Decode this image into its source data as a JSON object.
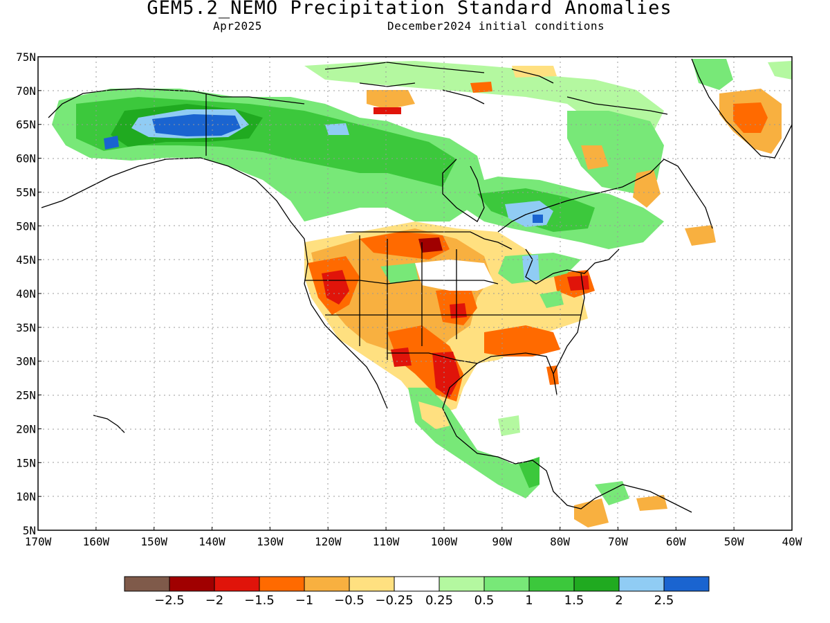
{
  "header": {
    "title": "GEM5.2_NEMO Precipitation Standard Anomalies",
    "valid_month": "Apr2025",
    "init_label": "December2024 initial conditions"
  },
  "map": {
    "lon_range": [
      -170,
      -40
    ],
    "lat_range": [
      5,
      75
    ],
    "x_ticks": [
      "170W",
      "160W",
      "150W",
      "140W",
      "130W",
      "120W",
      "110W",
      "100W",
      "90W",
      "80W",
      "70W",
      "60W",
      "50W",
      "40W"
    ],
    "y_ticks": [
      "5N",
      "10N",
      "15N",
      "20N",
      "25N",
      "30N",
      "35N",
      "40N",
      "45N",
      "50N",
      "55N",
      "60N",
      "65N",
      "70N",
      "75N"
    ],
    "grid": "dotted",
    "colorbar": {
      "colors": [
        "#7f5a4a",
        "#a00000",
        "#e0140a",
        "#ff6a00",
        "#f8b040",
        "#ffe080",
        "#ffffff",
        "#b4f8a0",
        "#78e878",
        "#3cc83c",
        "#20aa20",
        "#90ccf4",
        "#1a64d0"
      ],
      "labels": [
        "−2.5",
        "−2",
        "−1.5",
        "−1",
        "−0.5",
        "−0.25",
        "0.25",
        "0.5",
        "1",
        "1.5",
        "2",
        "2.5"
      ]
    },
    "regions": [
      {
        "desc": "alaska-green",
        "value": 1.5
      },
      {
        "desc": "yukon-blue",
        "value": 2.5
      },
      {
        "desc": "great-plains-dry",
        "value": -1.5
      },
      {
        "desc": "texas-dry",
        "value": -2
      },
      {
        "desc": "great-lakes-wet",
        "value": 2
      },
      {
        "desc": "greenland-dry",
        "value": -1
      }
    ]
  }
}
